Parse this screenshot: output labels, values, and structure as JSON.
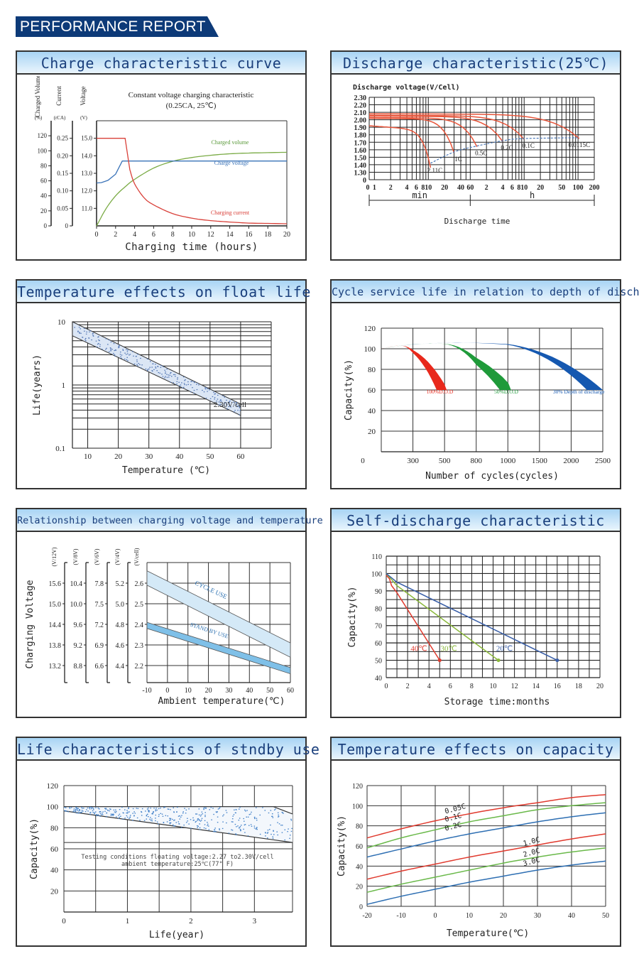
{
  "page": {
    "banner_title": "PERFORMANCE REPORT",
    "colors": {
      "banner": "#0d3a78",
      "header_text": "#1a3f7c",
      "red": "#e03a2e",
      "green": "#6aa94a",
      "blue": "#2e6fb3"
    }
  },
  "panels": [
    {
      "title": "Charge characteristic curve"
    },
    {
      "title": "Discharge characteristic(25℃)"
    },
    {
      "title": "Temperature effects on float life"
    },
    {
      "title": "Cycle service life in relation to depth of discharge"
    },
    {
      "title": "Relationship between charging voltage and temperature"
    },
    {
      "title": "Self-discharge characteristic"
    },
    {
      "title": "Life characteristics of stndby use"
    },
    {
      "title": "Temperature effects on capacity"
    }
  ],
  "chart_data": [
    {
      "id": "charge",
      "type": "line",
      "title": "Constant voltage charging characteristic",
      "subtitle": "(0.25CA, 25℃)",
      "xlabel": "Charging time (hours)",
      "xlim": [
        0,
        20
      ],
      "xticks": [
        0,
        2,
        4,
        6,
        8,
        10,
        12,
        14,
        16,
        18,
        20
      ],
      "axes": [
        {
          "label": "Charged Volume",
          "unit": "(%)",
          "ticks": [
            "0",
            "20",
            "40",
            "60",
            "80",
            "100",
            "120"
          ]
        },
        {
          "label": "Current",
          "unit": "(rCA)",
          "ticks": [
            "0",
            "0.05",
            "0.10",
            "0.15",
            "0.20",
            "0.25"
          ]
        },
        {
          "label": "Voltage",
          "unit": "(V)",
          "ticks": [
            "11.0",
            "12.0",
            "13.0",
            "14.0",
            "15.0"
          ]
        }
      ],
      "series": [
        {
          "name": "Charged volume",
          "unit": "%",
          "x": [
            0,
            1,
            2,
            3,
            4,
            6,
            8,
            10,
            12,
            14,
            16,
            18,
            20
          ],
          "y": [
            0,
            23,
            40,
            52,
            62,
            77,
            86,
            91,
            94,
            96,
            97,
            97.5,
            98
          ]
        },
        {
          "name": "Charge voltage",
          "unit": "V",
          "x": [
            0,
            1,
            2,
            2.7,
            3,
            20
          ],
          "y": [
            12.45,
            12.55,
            12.95,
            13.7,
            13.7,
            13.7
          ]
        },
        {
          "name": "Charging current",
          "unit": "rCA",
          "x": [
            0,
            3,
            3.5,
            4,
            5,
            6,
            8,
            10,
            12,
            14,
            16,
            18,
            20
          ],
          "y": [
            0.25,
            0.25,
            0.16,
            0.12,
            0.08,
            0.06,
            0.035,
            0.022,
            0.015,
            0.011,
            0.008,
            0.007,
            0.006
          ]
        }
      ]
    },
    {
      "id": "discharge",
      "type": "line",
      "ylabel": "Discharge voltage(V/Cell)",
      "xlabel": "Discharge time",
      "yticks": [
        "0",
        "1.30",
        "1.40",
        "1.50",
        "1.60",
        "1.70",
        "1.80",
        "1.90",
        "2.00",
        "2.10",
        "2.20",
        "2.30"
      ],
      "xticks": [
        "0",
        "1",
        "2",
        "4",
        "6",
        "8",
        "10",
        "20",
        "40",
        "60",
        "2",
        "4",
        "6",
        "8",
        "10",
        "20",
        "50",
        "100",
        "200"
      ],
      "x_units": [
        "min",
        "h"
      ],
      "series": [
        {
          "name": "2.11C",
          "end_minutes": 11,
          "end_voltage": 1.42
        },
        {
          "name": "1C",
          "end_minutes": 30,
          "end_voltage": 1.57
        },
        {
          "name": "0.5C",
          "end_minutes": 80,
          "end_voltage": 1.65
        },
        {
          "name": "0.2C",
          "end_minutes": 240,
          "end_voltage": 1.72
        },
        {
          "name": "0.1C",
          "end_minutes": 600,
          "end_voltage": 1.75
        },
        {
          "name": "0.0115C",
          "end_minutes": 6300,
          "end_voltage": 1.76
        }
      ]
    },
    {
      "id": "float_life",
      "type": "area",
      "xlabel": "Temperature (℃)",
      "ylabel": "Life(years)",
      "yscale": "log",
      "ylim": [
        0.1,
        10
      ],
      "yticks": [
        "0.1",
        "1",
        "10"
      ],
      "xticks": [
        10,
        20,
        30,
        40,
        50,
        60
      ],
      "xlim": [
        5,
        70
      ],
      "annotation": "2.30V/cell",
      "band": {
        "x": [
          5,
          60
        ],
        "upper": [
          10,
          0.5
        ],
        "lower": [
          6,
          0.33
        ]
      }
    },
    {
      "id": "cycle_life",
      "type": "area",
      "xlabel": "Number of cycles(cycles)",
      "ylabel": "Capacity(%)",
      "ylim": [
        0,
        120
      ],
      "yticks": [
        20,
        40,
        60,
        80,
        100,
        120
      ],
      "xticks": [
        "0",
        "300",
        "500",
        "800",
        "1000",
        "1500",
        "2000",
        "2500"
      ],
      "series": [
        {
          "name": "100%D.O.D",
          "color": "#e8291c",
          "end_cycles": [
            450,
            520
          ],
          "peak": 103
        },
        {
          "name": "50%D.O.D",
          "color": "#1f9a3a",
          "end_cycles": [
            950,
            1050
          ],
          "peak": 105
        },
        {
          "name": "30% Depth of discharge",
          "color": "#1558b0",
          "end_cycles": [
            2250,
            2500
          ],
          "peak": 106
        }
      ]
    },
    {
      "id": "charge_voltage_temp",
      "type": "area",
      "xlabel": "Ambient temperature(℃)",
      "ylabel": "Charging Voltage",
      "xlim": [
        -10,
        60
      ],
      "xticks": [
        -10,
        0,
        10,
        20,
        30,
        40,
        50,
        60
      ],
      "axes": [
        {
          "unit": "(V/12V)",
          "ticks": [
            "15.6",
            "15.0",
            "14.4",
            "13.8",
            "13.2"
          ]
        },
        {
          "unit": "(V/8V)",
          "ticks": [
            "10.4",
            "10.0",
            "9.6",
            "9.2",
            "8.8"
          ]
        },
        {
          "unit": "(V/6V)",
          "ticks": [
            "7.8",
            "7.5",
            "7.2",
            "6.9",
            "6.6"
          ]
        },
        {
          "unit": "(V/4V)",
          "ticks": [
            "5.2",
            "5.0",
            "4.8",
            "4.6",
            "4.4"
          ]
        },
        {
          "unit": "(V/cell)",
          "ticks": [
            "2.6",
            "2.5",
            "2.4",
            "2.3",
            "2.2"
          ]
        }
      ],
      "series": [
        {
          "name": "CYCLE USE",
          "x": [
            -10,
            60
          ],
          "upper": [
            2.66,
            2.31
          ],
          "lower": [
            2.59,
            2.24
          ]
        },
        {
          "name": "STAND BY USE",
          "x": [
            -10,
            60
          ],
          "upper": [
            2.41,
            2.19
          ],
          "lower": [
            2.38,
            2.16
          ]
        }
      ]
    },
    {
      "id": "self_discharge",
      "type": "line",
      "xlabel": "Storage time:months",
      "ylabel": "Capacity(%)",
      "xlim": [
        0,
        20
      ],
      "ylim": [
        40,
        110
      ],
      "xticks": [
        0,
        2,
        4,
        6,
        8,
        10,
        12,
        14,
        16,
        18,
        20
      ],
      "yticks": [
        40,
        50,
        60,
        70,
        80,
        90,
        100,
        110
      ],
      "series": [
        {
          "name": "40℃",
          "color": "#e03a2e",
          "x": [
            0,
            0.3,
            0.5,
            1,
            5
          ],
          "y": [
            99,
            97,
            93,
            89,
            50
          ]
        },
        {
          "name": "30℃",
          "color": "#8ab83a",
          "x": [
            0,
            1,
            10.5
          ],
          "y": [
            100,
            93,
            50
          ]
        },
        {
          "name": "20℃",
          "color": "#3a5fa8",
          "x": [
            0,
            1,
            16
          ],
          "y": [
            100,
            95,
            50
          ]
        }
      ]
    },
    {
      "id": "standby_life",
      "type": "area",
      "xlabel": "Life(year)",
      "ylabel": "Capacity(%)",
      "ylim": [
        0,
        120
      ],
      "yticks": [
        20,
        40,
        60,
        80,
        100,
        120
      ],
      "xticks": [
        0,
        1,
        2,
        3
      ],
      "xlim": [
        0,
        3.6
      ],
      "annotation": [
        "Testing conditions floating voltage:2.27 to2.30V/cell",
        "ambient temperature:25℃(77° F)"
      ],
      "band": {
        "upper": {
          "x": [
            0,
            3.3,
            3.6
          ],
          "y": [
            100,
            100,
            93
          ]
        },
        "lower": {
          "x": [
            0,
            3.6
          ],
          "y": [
            96,
            66
          ]
        }
      }
    },
    {
      "id": "temp_capacity",
      "type": "line",
      "xlabel": "Temperature(℃)",
      "ylabel": "Capacity(%)",
      "xlim": [
        -20,
        50
      ],
      "ylim": [
        0,
        120
      ],
      "xticks": [
        -20,
        -10,
        0,
        10,
        20,
        30,
        40,
        50
      ],
      "yticks": [
        0,
        20,
        40,
        60,
        80,
        100,
        120
      ],
      "x": [
        -20,
        -10,
        0,
        10,
        20,
        30,
        40,
        50
      ],
      "series": [
        {
          "name": "0.05C",
          "color": "#e03a2e",
          "y": [
            68,
            77,
            85,
            92,
            98,
            103,
            108,
            111
          ]
        },
        {
          "name": "0.1C",
          "color": "#6ab94a",
          "y": [
            58,
            68,
            76,
            84,
            90,
            96,
            100,
            103
          ]
        },
        {
          "name": "0.2C",
          "color": "#2e6fb3",
          "y": [
            49,
            57,
            65,
            72,
            78,
            84,
            89,
            93
          ]
        },
        {
          "name": "1.0C",
          "color": "#e03a2e",
          "y": [
            27,
            35,
            42,
            49,
            55,
            61,
            67,
            72
          ]
        },
        {
          "name": "2.0C",
          "color": "#6ab94a",
          "y": [
            14,
            22,
            29,
            36,
            43,
            49,
            54,
            58
          ]
        },
        {
          "name": "3.0C",
          "color": "#2e6fb3",
          "y": [
            2,
            10,
            17,
            24,
            30,
            36,
            41,
            45
          ]
        }
      ]
    }
  ]
}
